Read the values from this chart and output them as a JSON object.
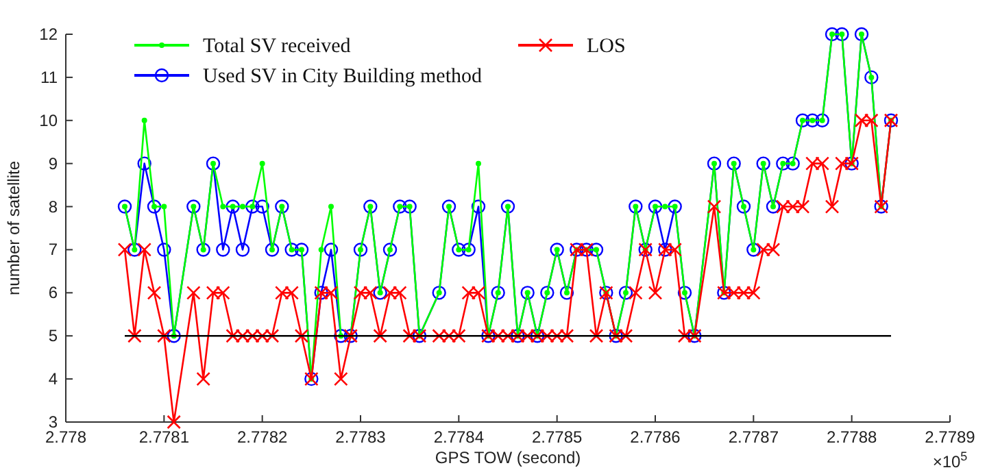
{
  "chart_data": {
    "type": "line",
    "xlabel": "GPS TOW (second)",
    "ylabel": "number of satellite",
    "annotations": [
      "×10$^{5}$"
    ],
    "xlim": [
      2.778,
      2.7789
    ],
    "xticks": [
      2.778,
      2.7781,
      2.7782,
      2.7783,
      2.7784,
      2.7785,
      2.7786,
      2.7787,
      2.7788,
      2.7789
    ],
    "ylim": [
      3,
      12
    ],
    "yticks": [
      3,
      4,
      5,
      6,
      7,
      8,
      9,
      10,
      11,
      12
    ],
    "x": [
      2.77806,
      2.77807,
      2.77808,
      2.77809,
      2.7781,
      2.77811,
      2.77813,
      2.77814,
      2.77815,
      2.77816,
      2.77817,
      2.77818,
      2.77819,
      2.7782,
      2.77821,
      2.77822,
      2.77823,
      2.77824,
      2.77825,
      2.77826,
      2.77827,
      2.77828,
      2.77829,
      2.7783,
      2.77831,
      2.77832,
      2.77833,
      2.77834,
      2.77835,
      2.77836,
      2.77838,
      2.77839,
      2.7784,
      2.77841,
      2.77842,
      2.77843,
      2.77844,
      2.77845,
      2.77846,
      2.77847,
      2.77848,
      2.77849,
      2.7785,
      2.77851,
      2.77852,
      2.77853,
      2.77854,
      2.77855,
      2.77856,
      2.77857,
      2.77858,
      2.77859,
      2.7786,
      2.77861,
      2.77862,
      2.77863,
      2.77864,
      2.77866,
      2.77867,
      2.77868,
      2.77869,
      2.7787,
      2.77871,
      2.77872,
      2.77873,
      2.77874,
      2.77875,
      2.77876,
      2.77877,
      2.77878,
      2.77879,
      2.7788,
      2.77881,
      2.77882,
      2.77883,
      2.77884
    ],
    "grid": false,
    "legend": "top left",
    "line_style": "solid",
    "series": [
      {
        "name": "Used SV in City Building method",
        "color": "#0000ff",
        "marker": "circle",
        "values": [
          8,
          7,
          9,
          8,
          7,
          5,
          8,
          7,
          9,
          7,
          8,
          7,
          8,
          8,
          7,
          8,
          7,
          7,
          4,
          6,
          7,
          5,
          5,
          7,
          8,
          6,
          7,
          8,
          8,
          5,
          6,
          8,
          7,
          7,
          8,
          5,
          6,
          8,
          5,
          6,
          5,
          6,
          7,
          6,
          7,
          7,
          7,
          6,
          5,
          6,
          8,
          7,
          8,
          7,
          8,
          6,
          5,
          9,
          6,
          9,
          8,
          7,
          9,
          8,
          9,
          9,
          10,
          10,
          10,
          12,
          12,
          9,
          12,
          11,
          8,
          10
        ]
      },
      {
        "name": "Total SV received",
        "color": "#00ff00",
        "marker": "dot",
        "values": [
          8,
          7,
          10,
          8,
          8,
          5,
          8,
          7,
          9,
          8,
          8,
          8,
          8,
          9,
          7,
          8,
          7,
          7,
          4,
          7,
          8,
          5,
          5,
          7,
          8,
          6,
          7,
          8,
          8,
          5,
          6,
          8,
          7,
          7,
          9,
          5,
          6,
          8,
          5,
          6,
          5,
          6,
          7,
          6,
          7,
          7,
          7,
          6,
          5,
          6,
          8,
          7,
          8,
          8,
          8,
          6,
          5,
          9,
          6,
          9,
          8,
          7,
          9,
          8,
          9,
          9,
          10,
          10,
          10,
          12,
          12,
          9,
          12,
          11,
          8,
          10
        ]
      },
      {
        "name": "LOS",
        "color": "#ff0000",
        "marker": "cross",
        "values": [
          7,
          5,
          7,
          6,
          5,
          3,
          6,
          4,
          6,
          6,
          5,
          5,
          5,
          5,
          5,
          6,
          6,
          5,
          4,
          6,
          6,
          4,
          5,
          6,
          6,
          5,
          6,
          6,
          5,
          5,
          5,
          5,
          5,
          6,
          6,
          5,
          5,
          5,
          5,
          5,
          5,
          5,
          5,
          5,
          7,
          7,
          5,
          6,
          5,
          5,
          6,
          7,
          6,
          7,
          7,
          5,
          5,
          8,
          6,
          6,
          6,
          6,
          7,
          7,
          8,
          8,
          8,
          9,
          9,
          8,
          9,
          9,
          10,
          10,
          8,
          10
        ]
      },
      {
        "color": "#000000",
        "marker": "none",
        "x": [
          2.77806,
          2.77884
        ],
        "values": [
          5,
          5
        ]
      }
    ]
  }
}
